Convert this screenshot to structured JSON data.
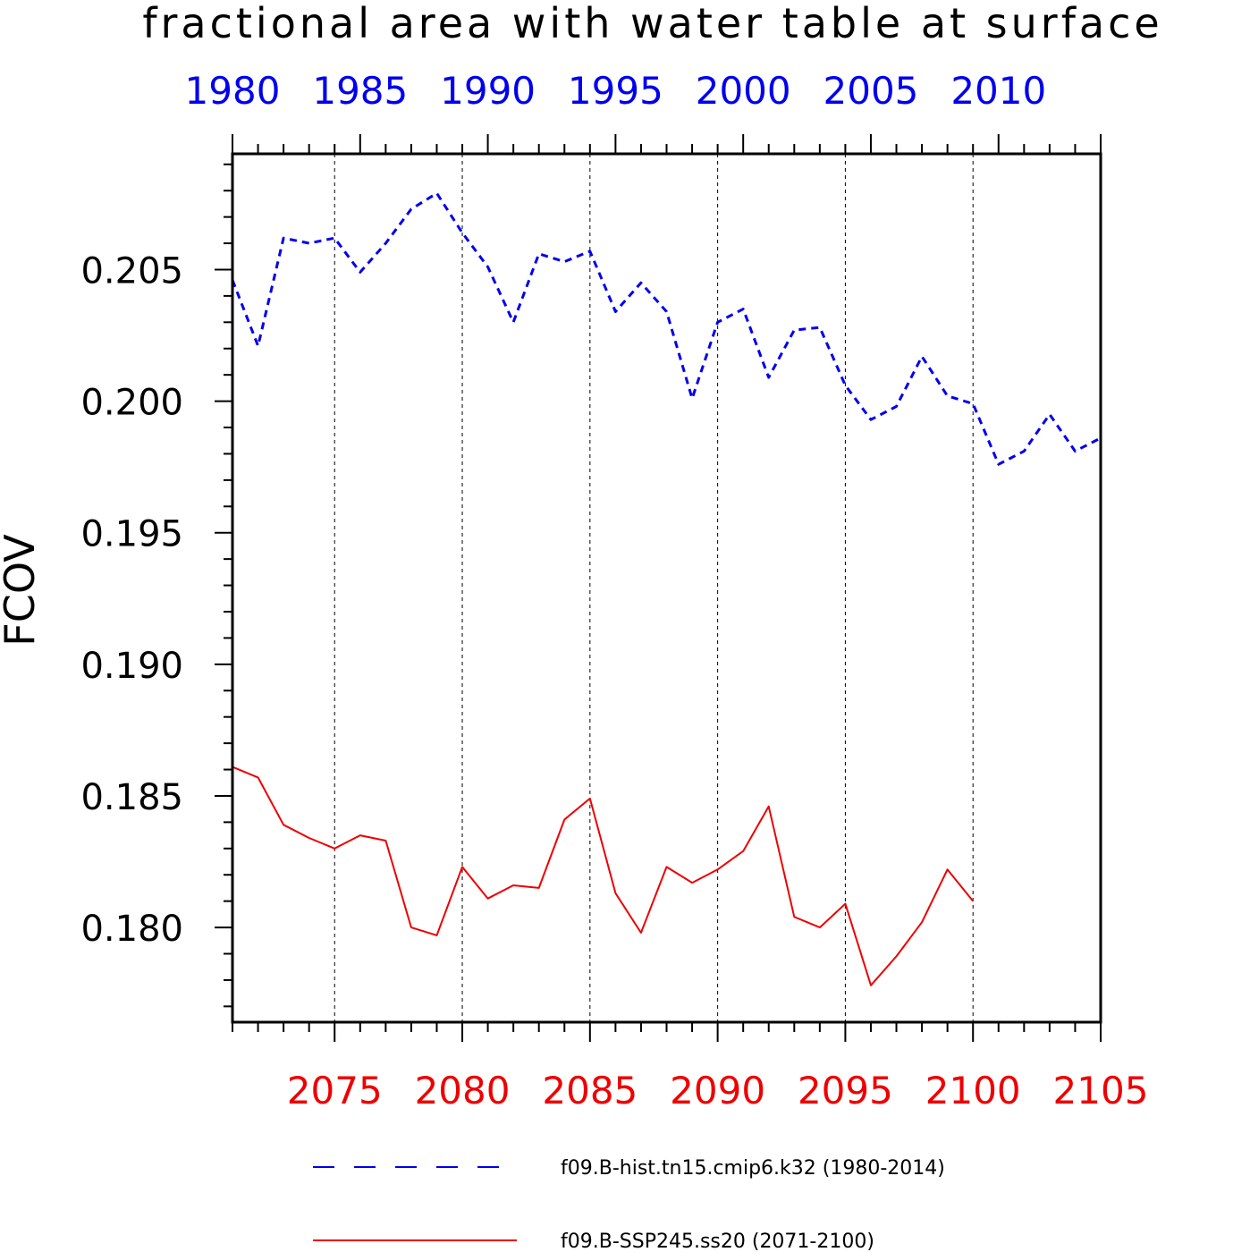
{
  "chart_data": {
    "type": "line",
    "title": "fractional area with water table at surface",
    "ylabel": "FCOV",
    "ylim": [
      0.1764,
      0.2094
    ],
    "yticks": [
      "0.180",
      "0.185",
      "0.190",
      "0.195",
      "0.200",
      "0.205"
    ],
    "grid": "vertical dashed lines at labeled bottom-axis years",
    "colors": {
      "hist": "#0000ee",
      "ssp": "#ee0000"
    },
    "top_axis": {
      "range": [
        1980,
        2014
      ],
      "ticks": [
        "1980",
        "1985",
        "1990",
        "1995",
        "2000",
        "2005",
        "2010"
      ]
    },
    "bottom_axis": {
      "range": [
        2071,
        2105
      ],
      "ticks": [
        "2075",
        "2080",
        "2085",
        "2090",
        "2095",
        "2100",
        "2105"
      ]
    },
    "series": [
      {
        "name": "f09.B-hist.tn15.cmip6.k32 (1980-2014)",
        "style": "dashed",
        "axis": "top",
        "x": [
          1980,
          1981,
          1982,
          1983,
          1984,
          1985,
          1986,
          1987,
          1988,
          1989,
          1990,
          1991,
          1992,
          1993,
          1994,
          1995,
          1996,
          1997,
          1998,
          1999,
          2000,
          2001,
          2002,
          2003,
          2004,
          2005,
          2006,
          2007,
          2008,
          2009,
          2010,
          2011,
          2012,
          2013,
          2014
        ],
        "values": [
          0.2046,
          0.2021,
          0.2062,
          0.206,
          0.2062,
          0.2049,
          0.206,
          0.2073,
          0.2079,
          0.2064,
          0.2051,
          0.203,
          0.2056,
          0.2053,
          0.2057,
          0.2034,
          0.2045,
          0.2034,
          0.2001,
          0.203,
          0.2035,
          0.2009,
          0.2027,
          0.2028,
          0.2006,
          0.1993,
          0.1998,
          0.2017,
          0.2002,
          0.1999,
          0.1976,
          0.1981,
          0.1995,
          0.1981,
          0.1986
        ]
      },
      {
        "name": "f09.B-SSP245.ss20 (2071-2100)",
        "style": "solid",
        "axis": "bottom",
        "x": [
          2071,
          2072,
          2073,
          2074,
          2075,
          2076,
          2077,
          2078,
          2079,
          2080,
          2081,
          2082,
          2083,
          2084,
          2085,
          2086,
          2087,
          2088,
          2089,
          2090,
          2091,
          2092,
          2093,
          2094,
          2095,
          2096,
          2097,
          2098,
          2099,
          2100
        ],
        "values": [
          0.1861,
          0.1857,
          0.1839,
          0.1834,
          0.183,
          0.1835,
          0.1833,
          0.18,
          0.1797,
          0.1823,
          0.1811,
          0.1816,
          0.1815,
          0.1841,
          0.1849,
          0.1813,
          0.1798,
          0.1823,
          0.1817,
          0.1822,
          0.1829,
          0.1846,
          0.1804,
          0.18,
          0.1809,
          0.1778,
          0.1789,
          0.1802,
          0.1822,
          0.181
        ]
      }
    ],
    "legend": {
      "placement": "bottom"
    }
  }
}
